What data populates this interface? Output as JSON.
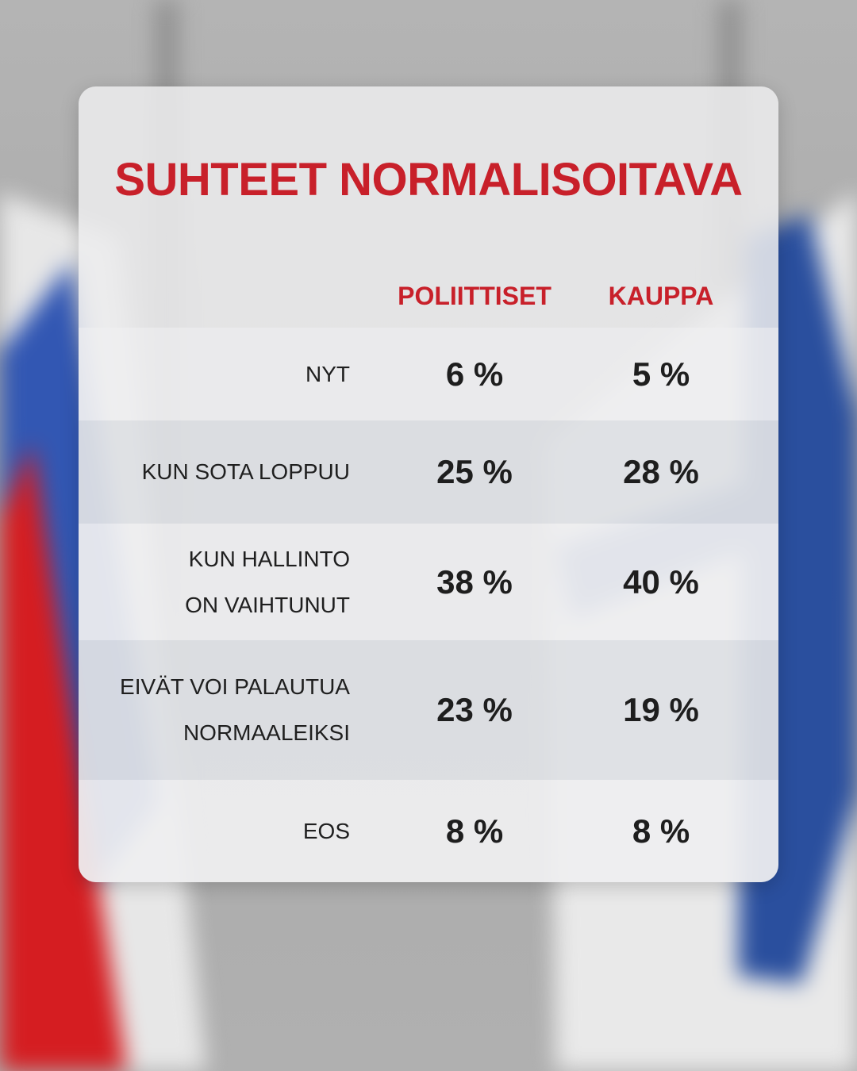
{
  "colors": {
    "accent": "#c8202a",
    "text": "#1e1e1e",
    "flag_red": "#d21a1e",
    "flag_blue": "#2f56b0",
    "flag_white": "#e6e6e6"
  },
  "chart_data": {
    "type": "table",
    "title": "SUHTEET NORMALISOITAVA",
    "columns": [
      "POLIITTISET",
      "KAUPPA"
    ],
    "rows": [
      {
        "label_lines": [
          "NYT"
        ],
        "values": [
          "6 %",
          "5 %"
        ]
      },
      {
        "label_lines": [
          "KUN SOTA LOPPUU"
        ],
        "values": [
          "25 %",
          "28 %"
        ]
      },
      {
        "label_lines": [
          "KUN HALLINTO",
          "ON VAIHTUNUT"
        ],
        "values": [
          "38 %",
          "40 %"
        ]
      },
      {
        "label_lines": [
          "EIVÄT VOI PALAUTUA",
          "NORMAALEIKSI"
        ],
        "values": [
          "23 %",
          "19 %"
        ]
      },
      {
        "label_lines": [
          "EOS"
        ],
        "values": [
          "8 %",
          "8 %"
        ]
      }
    ],
    "series": [
      {
        "name": "POLIITTISET",
        "values": [
          6,
          25,
          38,
          23,
          8
        ]
      },
      {
        "name": "KAUPPA",
        "values": [
          5,
          28,
          40,
          19,
          8
        ]
      }
    ]
  }
}
